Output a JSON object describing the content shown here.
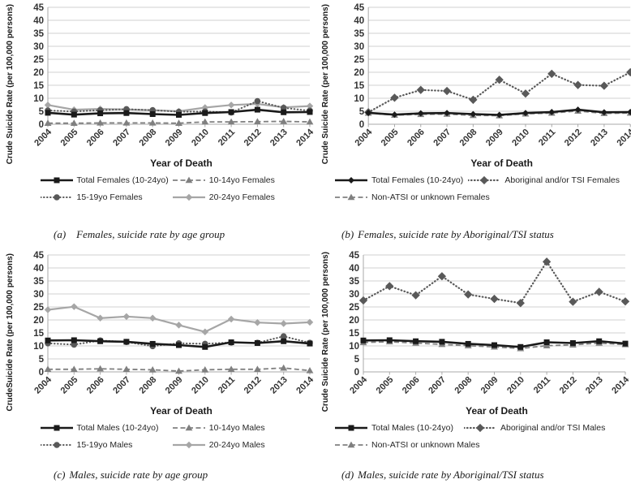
{
  "colors": {
    "total_black": "#1a1a1a",
    "dark_gray_dotted": "#595959",
    "mid_gray_dashed": "#808080",
    "light_gray_solid": "#a6a6a6",
    "gridline": "#d2d2d2",
    "axis": "#a9a9a9",
    "tick_text": "#333333"
  },
  "chart_data": [
    {
      "type": "line",
      "id": "a",
      "caption_label": "(a)",
      "caption_text": "Females, suicide rate by age group",
      "xlabel": "Year of Death",
      "ylabel": "Crude Suicide Rate (per 100,000 persons)",
      "ylim": [
        0,
        45
      ],
      "ytick_step": 5,
      "grid": true,
      "legend_position": "bottom",
      "categories": [
        "2004",
        "2005",
        "2006",
        "2007",
        "2008",
        "2009",
        "2010",
        "2011",
        "2012",
        "2013",
        "2014"
      ],
      "series": [
        {
          "name": "Total Females (10-24yo)",
          "color": "#1a1a1a",
          "line": "solid",
          "marker": "square",
          "lw": 2.6,
          "ms": 7,
          "values": [
            4.4,
            3.7,
            4.2,
            4.3,
            3.9,
            3.6,
            4.3,
            4.7,
            5.6,
            4.6,
            4.7
          ]
        },
        {
          "name": "10-14yo Females",
          "color": "#808080",
          "line": "dashed",
          "marker": "triangle",
          "lw": 1.8,
          "ms": 7.5,
          "values": [
            0.4,
            0.4,
            0.5,
            0.5,
            0.5,
            0.4,
            0.9,
            0.9,
            1.0,
            1.1,
            0.9
          ]
        },
        {
          "name": "15-19yo Females",
          "color": "#595959",
          "line": "dotted",
          "marker": "circle",
          "lw": 2,
          "ms": 7.6,
          "values": [
            5.3,
            4.9,
            5.4,
            5.8,
            5.4,
            4.8,
            4.9,
            4.5,
            8.9,
            6.3,
            5.2
          ]
        },
        {
          "name": "20-24yo Females",
          "color": "#a6a6a6",
          "line": "solid",
          "marker": "diamond",
          "lw": 2.2,
          "ms": 7,
          "values": [
            7.4,
            5.6,
            5.9,
            5.7,
            5.4,
            5.0,
            6.4,
            7.4,
            7.8,
            6.5,
            7.0
          ]
        }
      ]
    },
    {
      "type": "line",
      "id": "b",
      "caption_label": "(b)",
      "caption_text": "Females, suicide rate by Aboriginal/TSI status",
      "xlabel": "Year of Death",
      "ylabel": "Crude Suicide Rate (per 100,000 persons)",
      "ylim": [
        0,
        45
      ],
      "ytick_step": 5,
      "grid": true,
      "legend_position": "bottom",
      "categories": [
        "2004",
        "2005",
        "2006",
        "2007",
        "2008",
        "2009",
        "2010",
        "2011",
        "2012",
        "2013",
        "2014"
      ],
      "series": [
        {
          "name": "Total Females (10-24yo)",
          "color": "#1a1a1a",
          "line": "solid",
          "marker": "diamond",
          "lw": 2.6,
          "ms": 6.5,
          "values": [
            4.4,
            3.7,
            4.2,
            4.3,
            3.9,
            3.6,
            4.3,
            4.7,
            5.6,
            4.6,
            4.7
          ]
        },
        {
          "name": "Aboriginal and/or TSI Females",
          "color": "#595959",
          "line": "dotted",
          "marker": "diamond",
          "lw": 2.2,
          "ms": 8.5,
          "values": [
            4.6,
            10.2,
            13.2,
            12.8,
            9.4,
            17.1,
            11.8,
            19.4,
            15.1,
            14.8,
            20.0
          ]
        },
        {
          "name": "Non-ATSI or unknown Females",
          "color": "#808080",
          "line": "dashed",
          "marker": "triangle",
          "lw": 1.8,
          "ms": 7.5,
          "values": [
            4.3,
            3.5,
            3.8,
            3.9,
            3.4,
            3.3,
            4.0,
            4.3,
            5.1,
            4.2,
            4.3
          ]
        }
      ]
    },
    {
      "type": "line",
      "id": "c",
      "caption_label": "(c)",
      "caption_text": "Males, suicide rate by age group",
      "xlabel": "Year of Death",
      "ylabel": "CrudeSuicide Rate (per 100,000 persons)",
      "ylim": [
        0,
        45
      ],
      "ytick_step": 5,
      "grid": true,
      "legend_position": "bottom",
      "categories": [
        "2004",
        "2005",
        "2006",
        "2007",
        "2008",
        "2009",
        "2010",
        "2011",
        "2012",
        "2013",
        "2014"
      ],
      "series": [
        {
          "name": "Total Males (10-24yo)",
          "color": "#1a1a1a",
          "line": "solid",
          "marker": "square",
          "lw": 2.6,
          "ms": 7,
          "values": [
            12.1,
            12.2,
            11.8,
            11.6,
            10.8,
            10.3,
            9.6,
            11.4,
            11.1,
            11.8,
            10.9
          ]
        },
        {
          "name": "10-14yo Males",
          "color": "#808080",
          "line": "dashed",
          "marker": "triangle",
          "lw": 1.8,
          "ms": 7.5,
          "values": [
            1.0,
            1.0,
            1.2,
            1.0,
            0.8,
            0.3,
            0.8,
            1.0,
            1.0,
            1.5,
            0.5
          ]
        },
        {
          "name": "15-19yo Males",
          "color": "#595959",
          "line": "dotted",
          "marker": "circle",
          "lw": 2,
          "ms": 7.6,
          "values": [
            11.0,
            10.5,
            12.1,
            11.5,
            9.9,
            11.0,
            10.8,
            11.3,
            11.2,
            13.7,
            11.2
          ]
        },
        {
          "name": "20-24yo Males",
          "color": "#a6a6a6",
          "line": "solid",
          "marker": "diamond",
          "lw": 2.2,
          "ms": 7,
          "values": [
            23.9,
            25.1,
            20.7,
            21.3,
            20.7,
            18.0,
            15.4,
            20.3,
            19.0,
            18.6,
            19.1
          ]
        }
      ]
    },
    {
      "type": "line",
      "id": "d",
      "caption_label": "(d)",
      "caption_text": "Males, suicide rate by Aboriginal/TSI status",
      "xlabel": "Year of Death",
      "ylabel": "Crude Suicide Rate (per 100,000 persons)",
      "ylim": [
        0,
        45
      ],
      "ytick_step": 5,
      "grid": true,
      "legend_position": "bottom",
      "categories": [
        "2004",
        "2005",
        "2006",
        "2007",
        "2008",
        "2009",
        "2010",
        "2011",
        "2012",
        "2013",
        "2014"
      ],
      "series": [
        {
          "name": "Total Males (10-24yo)",
          "color": "#1a1a1a",
          "line": "solid",
          "marker": "square",
          "lw": 2.6,
          "ms": 7,
          "values": [
            12.1,
            12.2,
            11.8,
            11.6,
            10.8,
            10.3,
            9.6,
            11.4,
            11.1,
            11.8,
            10.9
          ]
        },
        {
          "name": "Aboriginal and/or TSI Males",
          "color": "#595959",
          "line": "dotted",
          "marker": "diamond",
          "lw": 2.2,
          "ms": 8.5,
          "values": [
            27.5,
            33.0,
            29.5,
            36.8,
            29.8,
            28.1,
            26.5,
            42.4,
            27.0,
            30.8,
            27.1
          ]
        },
        {
          "name": "Non-ATSI or unknown Males",
          "color": "#808080",
          "line": "dashed",
          "marker": "triangle",
          "lw": 1.8,
          "ms": 7.5,
          "values": [
            11.3,
            11.6,
            11.1,
            10.6,
            10.1,
            9.6,
            9.0,
            10.1,
            10.4,
            11.1,
            10.5
          ]
        }
      ]
    }
  ]
}
